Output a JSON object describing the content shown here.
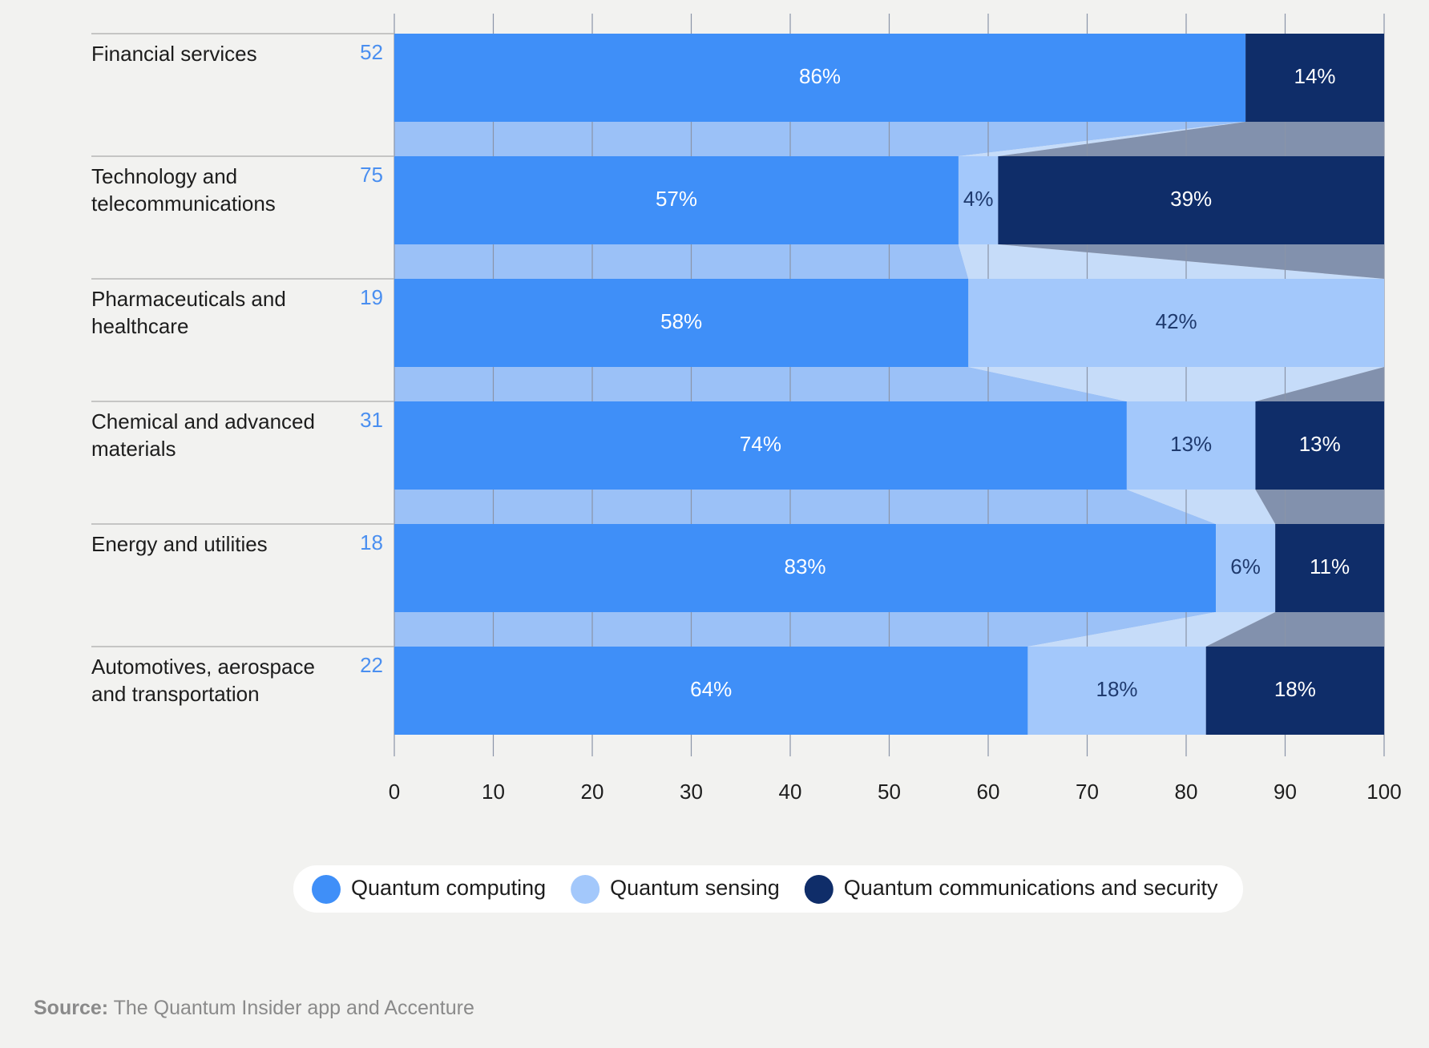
{
  "chart_data": {
    "type": "stacked-bar-horizontal",
    "categories": [
      "Financial services",
      "Technology and telecommunications",
      "Pharmaceuticals and healthcare",
      "Chemical and advanced materials",
      "Energy and utilities",
      "Automotives, aerospace and transportation"
    ],
    "counts": [
      52,
      75,
      19,
      31,
      18,
      22
    ],
    "series": [
      {
        "name": "Quantum computing",
        "color": "#3f8ff8",
        "values": [
          86,
          57,
          58,
          74,
          83,
          64
        ],
        "value_labels": [
          "86%",
          "57%",
          "58%",
          "74%",
          "83%",
          "64%"
        ]
      },
      {
        "name": "Quantum sensing",
        "color": "#a3c8fb",
        "values": [
          0,
          4,
          42,
          13,
          6,
          18
        ],
        "value_labels": [
          null,
          "4%",
          "42%",
          "13%",
          "6%",
          "18%"
        ]
      },
      {
        "name": "Quantum communications and security",
        "color": "#0f2d69",
        "values": [
          14,
          39,
          0,
          13,
          11,
          18
        ],
        "value_labels": [
          "14%",
          "39%",
          null,
          "13%",
          "11%",
          "18%"
        ]
      }
    ],
    "xlim": [
      0,
      100
    ],
    "xticks": [
      0,
      10,
      20,
      30,
      40,
      50,
      60,
      70,
      80,
      90,
      100
    ],
    "grid": true,
    "source_label": "Source:",
    "source": "The Quantum Insider app and Accenture"
  }
}
